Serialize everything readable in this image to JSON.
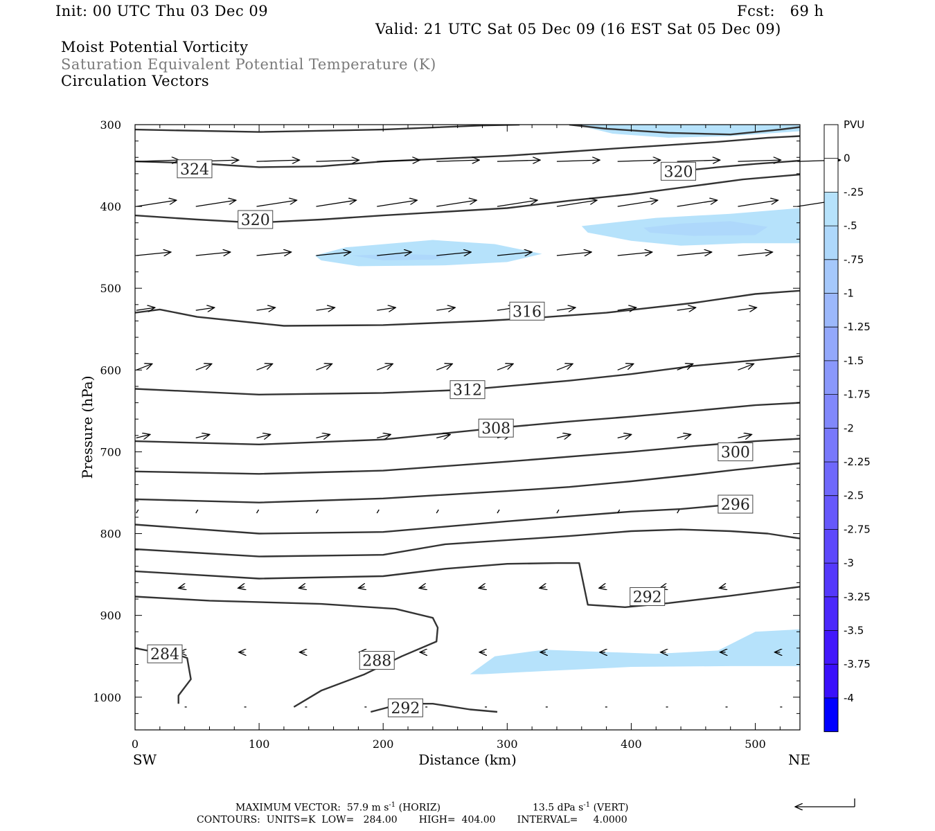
{
  "header": {
    "init": "Init: 00 UTC Thu 03 Dec 09",
    "fcst": "Fcst:   69 h",
    "valid": "Valid: 21 UTC Sat 05 Dec 09 (16 EST Sat 05 Dec 09)",
    "field1": "Moist Potential Vorticity",
    "field2": "Saturation Equivalent Potential Temperature (K)",
    "field3": "Circulation Vectors"
  },
  "footer": {
    "max_vector": "MAXIMUM VECTOR:  57.9 m s",
    "max_vector_sup": "-1",
    "horiz": "(HORIZ)",
    "vert_val": "13.5 dPa s",
    "vert_sup": "-1",
    "vert": "(VERT)",
    "contours": "CONTOURS:  UNITS=K  LOW=   284.00       HIGH=  404.00       INTERVAL=     4.0000"
  },
  "chart_data": {
    "type": "cross-section",
    "xlabel": "Distance (km)",
    "ylabel": "Pressure (hPa)",
    "xlim": [
      0,
      536
    ],
    "ylim": [
      1040,
      300
    ],
    "x_ticks": [
      0,
      100,
      200,
      300,
      400,
      500
    ],
    "y_ticks": [
      300,
      400,
      500,
      600,
      700,
      800,
      900,
      1000
    ],
    "x_left_label": "SW",
    "x_right_label": "NE",
    "colorbar": {
      "unit": "PVU",
      "levels": [
        "0",
        "-.25",
        "-.5",
        "-.75",
        "-1",
        "-1.25",
        "-1.5",
        "-1.75",
        "-2",
        "-2.25",
        "-2.5",
        "-2.75",
        "-3",
        "-3.25",
        "-3.5",
        "-3.75",
        "-4"
      ],
      "colors": [
        "#ffffff",
        "#ffffff",
        "#b6e2fb",
        "#aed8fb",
        "#a5c8fb",
        "#9cb8fb",
        "#93a8fb",
        "#8a98fb",
        "#8188fb",
        "#7878fb",
        "#6f68fb",
        "#6658fb",
        "#5d48fb",
        "#5438fb",
        "#4b28fb",
        "#4218fb",
        "#3a10fb",
        "#0000ff"
      ]
    },
    "contours": [
      {
        "value": 284,
        "label": "284",
        "label_at": [
          24,
          947
        ],
        "points": [
          [
            0,
            940
          ],
          [
            10,
            943
          ],
          [
            30,
            946
          ],
          [
            42,
            952
          ],
          [
            45,
            978
          ],
          [
            35,
            998
          ],
          [
            35,
            1008
          ]
        ]
      },
      {
        "value": 288,
        "label": "288",
        "label_at": [
          195,
          955
        ],
        "points": [
          [
            128,
            1012
          ],
          [
            150,
            992
          ],
          [
            185,
            972
          ],
          [
            215,
            950
          ],
          [
            243,
            932
          ],
          [
            244,
            915
          ],
          [
            240,
            903
          ],
          [
            210,
            892
          ],
          [
            150,
            886
          ],
          [
            60,
            882
          ],
          [
            0,
            877
          ]
        ]
      },
      {
        "value": 292,
        "label": "292",
        "label_at": [
          218,
          1013
        ],
        "points": [
          [
            190,
            1018
          ],
          [
            215,
            1008
          ],
          [
            240,
            1008
          ],
          [
            270,
            1015
          ],
          [
            292,
            1018
          ]
        ]
      },
      {
        "value": 292,
        "label": "292",
        "label_at": [
          413,
          877
        ],
        "points": [
          [
            0,
            846
          ],
          [
            100,
            855
          ],
          [
            200,
            852
          ],
          [
            250,
            843
          ],
          [
            300,
            837
          ],
          [
            340,
            836
          ],
          [
            358,
            836
          ],
          [
            365,
            887
          ],
          [
            395,
            890
          ],
          [
            430,
            885
          ],
          [
            480,
            876
          ],
          [
            536,
            865
          ]
        ]
      },
      {
        "value": 296,
        "label": "",
        "label_at": null,
        "points": [
          [
            0,
            819
          ],
          [
            100,
            828
          ],
          [
            200,
            826
          ],
          [
            250,
            813
          ],
          [
            350,
            803
          ],
          [
            400,
            797
          ],
          [
            440,
            795
          ],
          [
            480,
            797
          ],
          [
            510,
            800
          ],
          [
            536,
            806
          ]
        ]
      },
      {
        "value": 296,
        "label": "296",
        "label_at": [
          484,
          764
        ],
        "points": [
          [
            0,
            789
          ],
          [
            100,
            800
          ],
          [
            200,
            798
          ],
          [
            300,
            785
          ],
          [
            350,
            779
          ],
          [
            400,
            773
          ],
          [
            440,
            770
          ],
          [
            484,
            764
          ]
        ]
      },
      {
        "value": 300,
        "label": "300",
        "label_at": [
          484,
          700
        ],
        "points": [
          [
            0,
            758
          ],
          [
            100,
            762
          ],
          [
            200,
            757
          ],
          [
            300,
            748
          ],
          [
            350,
            743
          ],
          [
            400,
            736
          ],
          [
            450,
            728
          ],
          [
            484,
            722
          ],
          [
            510,
            718
          ],
          [
            536,
            714
          ]
        ]
      },
      {
        "value": 304,
        "label": "",
        "label_at": null,
        "points": [
          [
            0,
            724
          ],
          [
            100,
            727
          ],
          [
            200,
            723
          ],
          [
            300,
            712
          ],
          [
            400,
            700
          ],
          [
            450,
            693
          ],
          [
            500,
            687
          ],
          [
            536,
            684
          ]
        ]
      },
      {
        "value": 308,
        "label": "308",
        "label_at": [
          291,
          671
        ],
        "points": [
          [
            0,
            687
          ],
          [
            100,
            691
          ],
          [
            200,
            685
          ],
          [
            291,
            671
          ],
          [
            350,
            663
          ],
          [
            400,
            657
          ],
          [
            450,
            650
          ],
          [
            500,
            643
          ],
          [
            536,
            640
          ]
        ]
      },
      {
        "value": 312,
        "label": "312",
        "label_at": [
          268,
          624
        ],
        "points": [
          [
            0,
            623
          ],
          [
            100,
            630
          ],
          [
            200,
            628
          ],
          [
            268,
            624
          ],
          [
            350,
            613
          ],
          [
            400,
            605
          ],
          [
            450,
            595
          ],
          [
            500,
            588
          ],
          [
            536,
            583
          ]
        ]
      },
      {
        "value": 316,
        "label": "316",
        "label_at": [
          316,
          528
        ],
        "points": [
          [
            0,
            530
          ],
          [
            20,
            526
          ],
          [
            50,
            535
          ],
          [
            120,
            546
          ],
          [
            200,
            545
          ],
          [
            280,
            540
          ],
          [
            316,
            537
          ],
          [
            380,
            530
          ],
          [
            450,
            518
          ],
          [
            500,
            507
          ],
          [
            536,
            503
          ]
        ]
      },
      {
        "value": 320,
        "label": "320",
        "label_at": [
          97,
          416
        ],
        "points": [
          [
            0,
            411
          ],
          [
            50,
            416
          ],
          [
            97,
            420
          ],
          [
            150,
            416
          ],
          [
            200,
            411
          ],
          [
            300,
            402
          ],
          [
            350,
            393
          ],
          [
            400,
            385
          ],
          [
            450,
            375
          ],
          [
            490,
            367
          ],
          [
            536,
            361
          ]
        ]
      },
      {
        "value": 320,
        "label": "320",
        "label_at": [
          438,
          357
        ],
        "points": [
          [
            438,
            357
          ],
          [
            470,
            352
          ],
          [
            500,
            348
          ],
          [
            536,
            344
          ]
        ]
      },
      {
        "value": 324,
        "label": "324",
        "label_at": [
          48,
          354
        ],
        "points": [
          [
            0,
            345
          ],
          [
            48,
            347
          ],
          [
            100,
            352
          ],
          [
            150,
            351
          ],
          [
            200,
            345
          ],
          [
            300,
            338
          ],
          [
            350,
            333
          ],
          [
            388,
            329
          ],
          [
            420,
            326
          ],
          [
            470,
            321
          ],
          [
            510,
            316
          ],
          [
            536,
            314
          ]
        ]
      },
      {
        "value": 328,
        "label": "",
        "label_at": null,
        "points": [
          [
            0,
            306
          ],
          [
            100,
            309
          ],
          [
            200,
            306
          ],
          [
            280,
            301
          ],
          [
            310,
            300
          ]
        ]
      },
      {
        "value": 328,
        "label": "",
        "label_at": null,
        "points": [
          [
            350,
            300
          ],
          [
            380,
            305
          ],
          [
            430,
            310
          ],
          [
            480,
            312
          ],
          [
            520,
            306
          ],
          [
            536,
            303
          ]
        ]
      }
    ],
    "shading": [
      {
        "pvu": "-.25 to -.5",
        "points": [
          [
            145,
            460
          ],
          [
            170,
            450
          ],
          [
            240,
            441
          ],
          [
            290,
            446
          ],
          [
            328,
            458
          ],
          [
            300,
            468
          ],
          [
            250,
            472
          ],
          [
            180,
            473
          ],
          [
            150,
            466
          ]
        ]
      },
      {
        "pvu": "-.5 to -.75",
        "points": [
          [
            175,
            460
          ],
          [
            210,
            458
          ],
          [
            255,
            460
          ],
          [
            240,
            465
          ],
          [
            200,
            466
          ]
        ]
      },
      {
        "pvu": "-.25 to -.5",
        "points": [
          [
            360,
            424
          ],
          [
            420,
            414
          ],
          [
            480,
            409
          ],
          [
            536,
            402
          ],
          [
            536,
            445
          ],
          [
            490,
            445
          ],
          [
            440,
            448
          ],
          [
            400,
            442
          ],
          [
            365,
            432
          ]
        ]
      },
      {
        "pvu": "-.5 to -.75",
        "points": [
          [
            410,
            426
          ],
          [
            440,
            421
          ],
          [
            480,
            418
          ],
          [
            510,
            425
          ],
          [
            500,
            435
          ],
          [
            450,
            436
          ],
          [
            415,
            432
          ]
        ]
      },
      {
        "pvu": "-.25 to -.5",
        "points": [
          [
            355,
            300
          ],
          [
            536,
            300
          ],
          [
            536,
            308
          ],
          [
            480,
            314
          ],
          [
            430,
            316
          ],
          [
            385,
            311
          ]
        ]
      },
      {
        "pvu": "-.25 to -.5",
        "points": [
          [
            270,
            972
          ],
          [
            290,
            950
          ],
          [
            330,
            942
          ],
          [
            420,
            947
          ],
          [
            470,
            943
          ],
          [
            500,
            920
          ],
          [
            536,
            917
          ],
          [
            536,
            962
          ],
          [
            480,
            962
          ],
          [
            400,
            963
          ],
          [
            330,
            968
          ],
          [
            280,
            972
          ]
        ]
      }
    ],
    "vector_rows": [
      {
        "p": 345,
        "y0": 345,
        "dy": -2,
        "len": 62,
        "xs": [
          1,
          49,
          98,
          146,
          195,
          243,
          292,
          340,
          389,
          437,
          486,
          534
        ]
      },
      {
        "p": 400,
        "y0": 400,
        "dy": -9,
        "len": 58,
        "xs": [
          1,
          49,
          98,
          146,
          195,
          243,
          292,
          340,
          389,
          437,
          486,
          534
        ]
      },
      {
        "p": 460,
        "y0": 460,
        "dy": -5,
        "len": 50,
        "xs": [
          1,
          49,
          98,
          146,
          195,
          243,
          292,
          340,
          389,
          437,
          486
        ]
      },
      {
        "p": 527,
        "y0": 527,
        "dy": -4,
        "len": 27,
        "xs": [
          1,
          49,
          98,
          146,
          195,
          243,
          292,
          340,
          389,
          437,
          486
        ]
      },
      {
        "p": 600,
        "y0": 600,
        "dy": -9,
        "len": 23,
        "xs": [
          1,
          49,
          98,
          146,
          195,
          243,
          292,
          340,
          389,
          437,
          486
        ]
      },
      {
        "p": 683,
        "y0": 683,
        "dy": -5,
        "len": 20,
        "xs": [
          1,
          49,
          98,
          146,
          195,
          243,
          292,
          340,
          389,
          437,
          486
        ]
      },
      {
        "p": 775,
        "y0": 775,
        "dy": -5,
        "len": 3,
        "xs": [
          1,
          49,
          98,
          146,
          195,
          243,
          292,
          340,
          389,
          437,
          486
        ]
      },
      {
        "p": 865,
        "y0": 865,
        "dy": 2,
        "len": -9,
        "xs": [
          40,
          88,
          137,
          185,
          234,
          282,
          331,
          379,
          428,
          476
        ]
      },
      {
        "p": 945,
        "y0": 945,
        "dy": 0,
        "len": -8,
        "xs": [
          40,
          88,
          137,
          185,
          234,
          282,
          331,
          379,
          428,
          476,
          520
        ]
      },
      {
        "p": 1012,
        "y0": 1012,
        "dy": 0,
        "len": 3,
        "xs": [
          40,
          88,
          137,
          185,
          234,
          282,
          331,
          379,
          428,
          476,
          520
        ]
      }
    ]
  }
}
